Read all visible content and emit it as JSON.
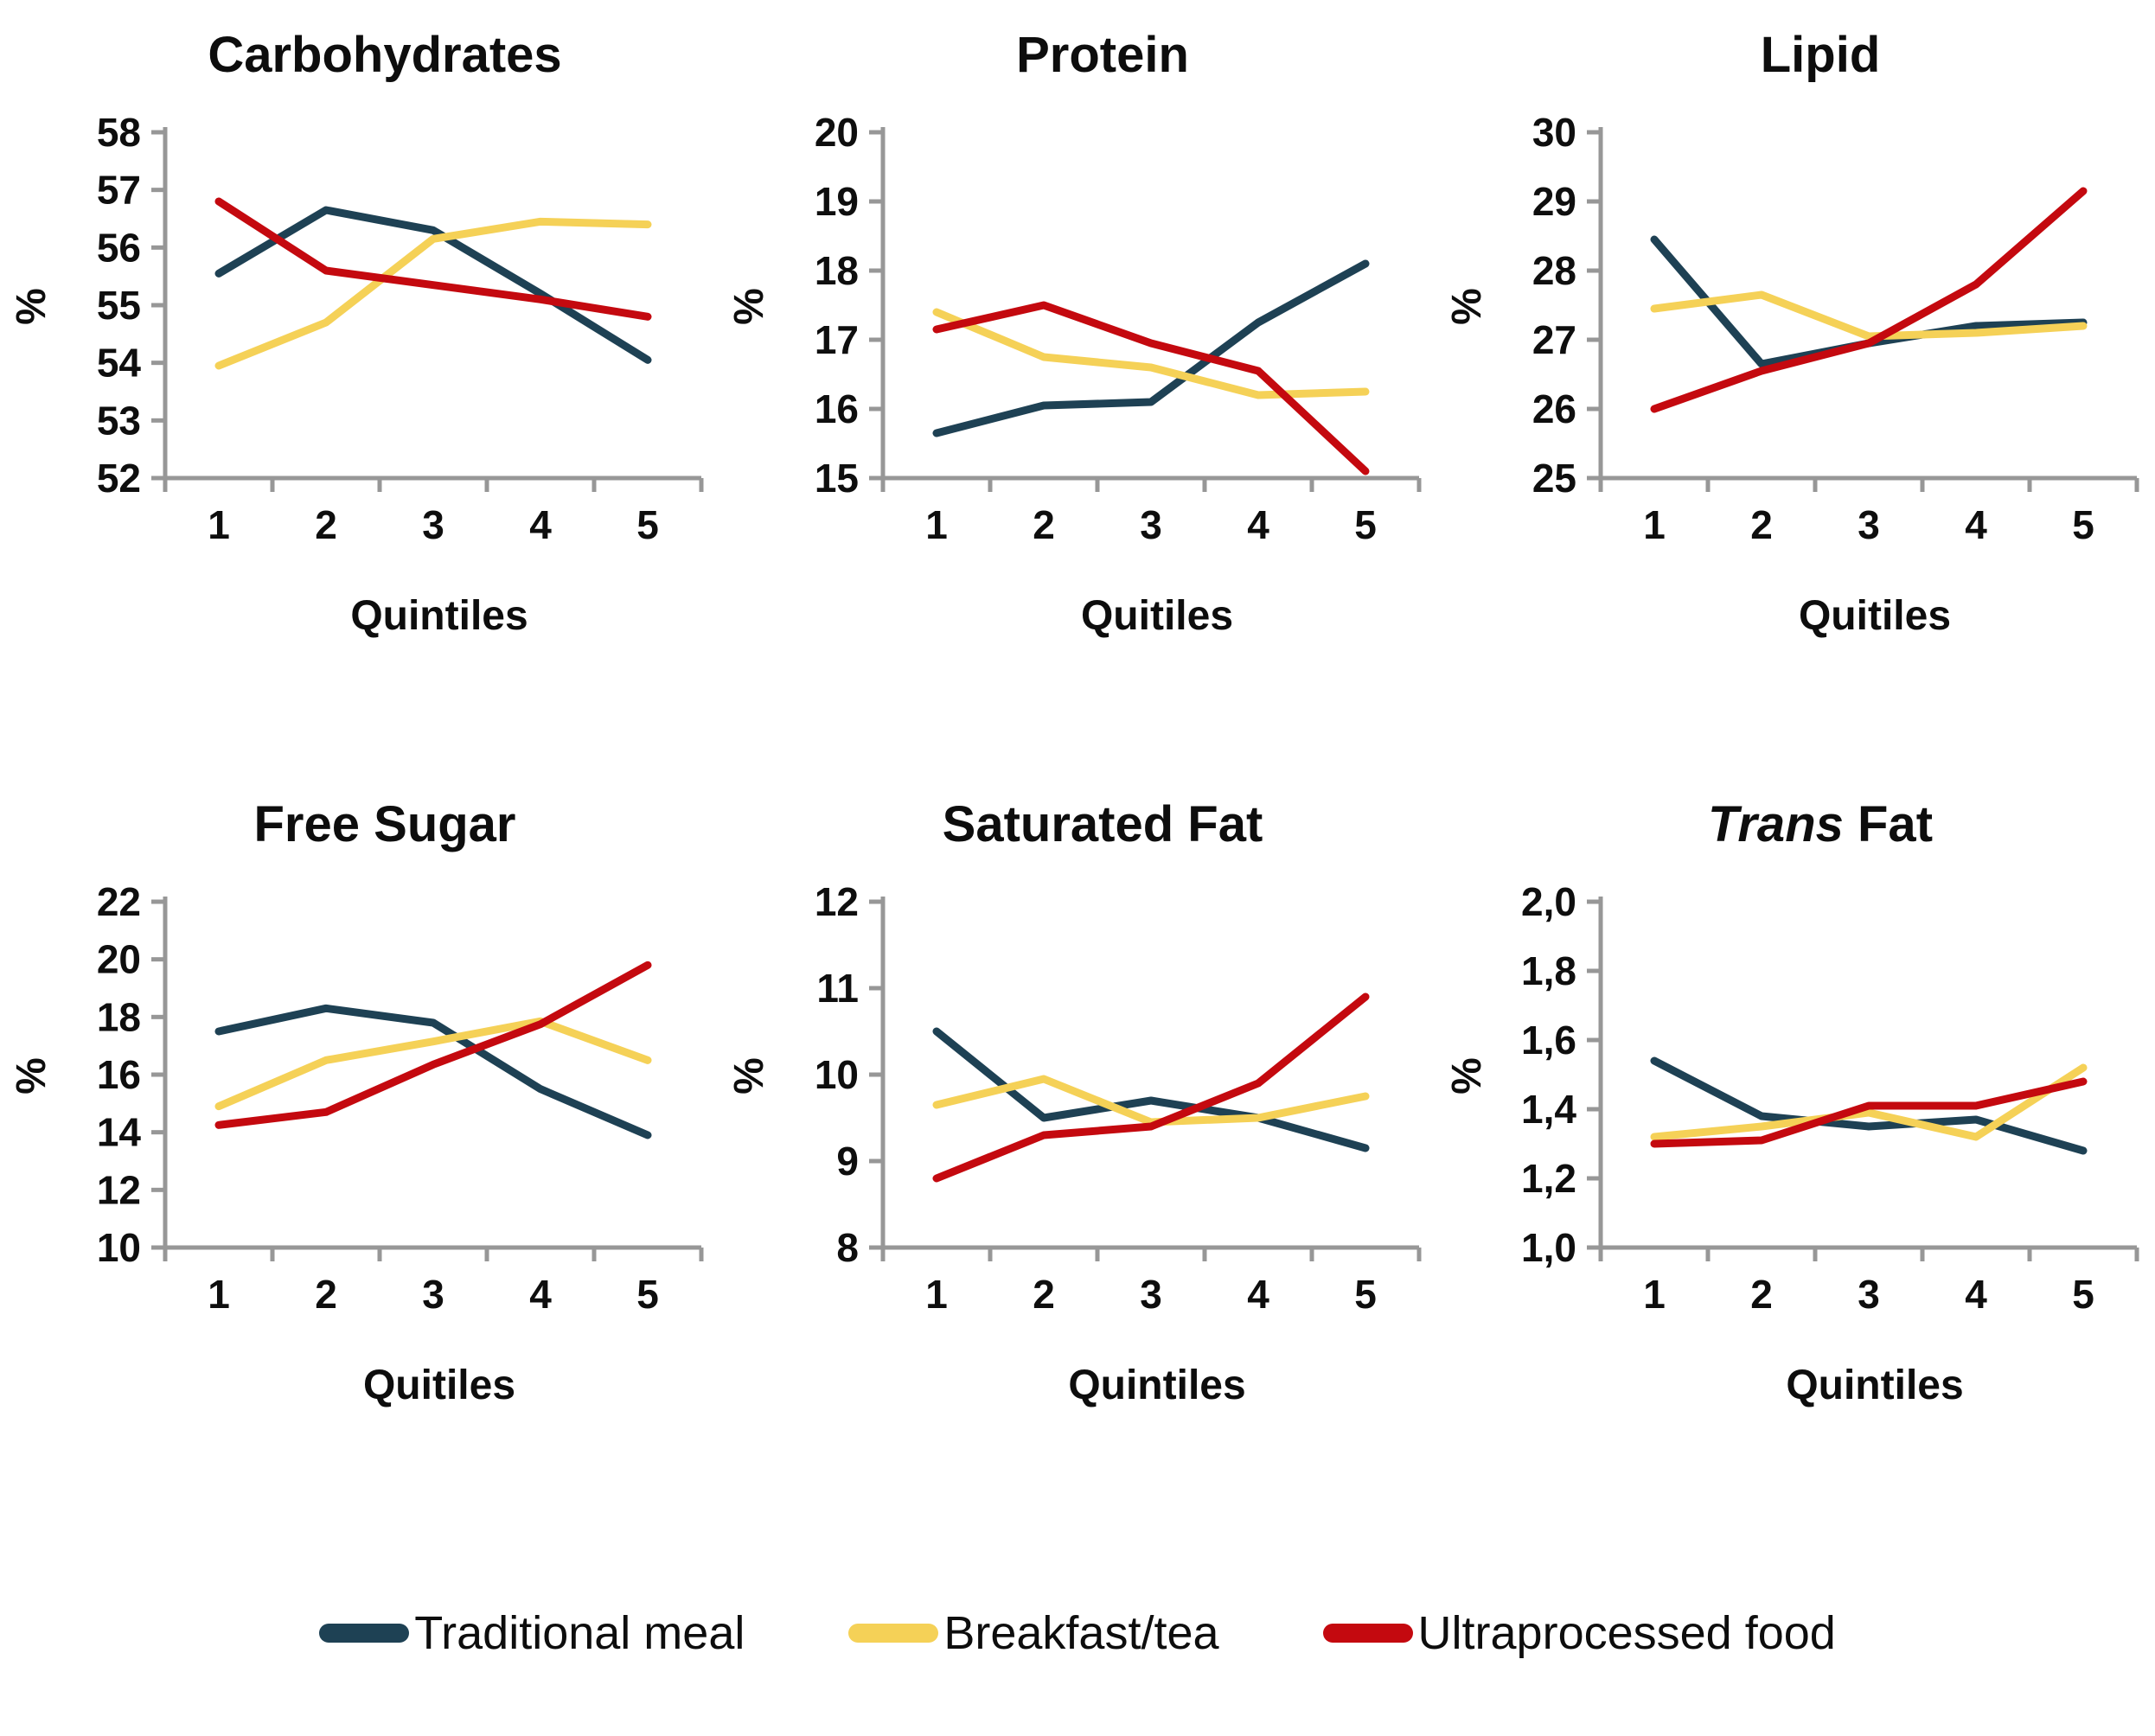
{
  "legend": {
    "items": [
      {
        "label": "Traditional meal",
        "color": "#1e4154"
      },
      {
        "label": "Breakfast/tea",
        "color": "#f5d157"
      },
      {
        "label": "Ultraprocessed food",
        "color": "#c4090f"
      }
    ]
  },
  "axis_style": {
    "axis_color": "#979797",
    "tick_label_color": "#0e0e0e"
  },
  "chart_data": [
    {
      "type": "line",
      "title_italic": "",
      "title_rest": "Carbohydrates",
      "xlabel": "Quintiles",
      "ylabel": "%",
      "categories": [
        1,
        2,
        3,
        4,
        5
      ],
      "xtick_labels": [
        "1",
        "2",
        "3",
        "4",
        "5"
      ],
      "ylim": [
        52,
        58
      ],
      "yticks": [
        52,
        53,
        54,
        55,
        56,
        57,
        58
      ],
      "ytick_labels": [
        "52",
        "53",
        "54",
        "55",
        "56",
        "57",
        "58"
      ],
      "grid": false,
      "series": [
        {
          "name": "Traditional meal",
          "color": "#1e4154",
          "values": [
            55.55,
            56.65,
            56.3,
            55.2,
            54.05
          ]
        },
        {
          "name": "Breakfast/tea",
          "color": "#f5d157",
          "values": [
            53.95,
            54.7,
            56.15,
            56.45,
            56.4
          ]
        },
        {
          "name": "Ultraprocessed food",
          "color": "#c4090f",
          "values": [
            56.8,
            55.6,
            55.35,
            55.1,
            54.8
          ]
        }
      ]
    },
    {
      "type": "line",
      "title_italic": "",
      "title_rest": "Protein",
      "xlabel": "Quitiles",
      "ylabel": "%",
      "categories": [
        1,
        2,
        3,
        4,
        5
      ],
      "xtick_labels": [
        "1",
        "2",
        "3",
        "4",
        "5"
      ],
      "ylim": [
        15,
        20
      ],
      "yticks": [
        15,
        16,
        17,
        18,
        19,
        20
      ],
      "ytick_labels": [
        "15",
        "16",
        "17",
        "18",
        "19",
        "20"
      ],
      "grid": false,
      "series": [
        {
          "name": "Traditional meal",
          "color": "#1e4154",
          "values": [
            15.65,
            16.05,
            16.1,
            17.25,
            18.1
          ]
        },
        {
          "name": "Breakfast/tea",
          "color": "#f5d157",
          "values": [
            17.4,
            16.75,
            16.6,
            16.2,
            16.25
          ]
        },
        {
          "name": "Ultraprocessed food",
          "color": "#c4090f",
          "values": [
            17.15,
            17.5,
            16.95,
            16.55,
            15.1
          ]
        }
      ]
    },
    {
      "type": "line",
      "title_italic": "",
      "title_rest": "Lipid",
      "xlabel": "Quitiles",
      "ylabel": "%",
      "categories": [
        1,
        2,
        3,
        4,
        5
      ],
      "xtick_labels": [
        "1",
        "2",
        "3",
        "4",
        "5"
      ],
      "ylim": [
        25,
        30
      ],
      "yticks": [
        25,
        26,
        27,
        28,
        29,
        30
      ],
      "ytick_labels": [
        "25",
        "26",
        "27",
        "28",
        "29",
        "30"
      ],
      "grid": false,
      "series": [
        {
          "name": "Traditional meal",
          "color": "#1e4154",
          "values": [
            28.45,
            26.65,
            26.95,
            27.2,
            27.25
          ]
        },
        {
          "name": "Breakfast/tea",
          "color": "#f5d157",
          "values": [
            27.45,
            27.65,
            27.05,
            27.1,
            27.2
          ]
        },
        {
          "name": "Ultraprocessed food",
          "color": "#c4090f",
          "values": [
            26.0,
            26.55,
            26.95,
            27.8,
            29.15
          ]
        }
      ]
    },
    {
      "type": "line",
      "title_italic": "",
      "title_rest": "Free Sugar",
      "xlabel": "Quitiles",
      "ylabel": "%",
      "categories": [
        1,
        2,
        3,
        4,
        5
      ],
      "xtick_labels": [
        "1",
        "2",
        "3",
        "4",
        "5"
      ],
      "ylim": [
        10,
        22
      ],
      "yticks": [
        10,
        12,
        14,
        16,
        18,
        20,
        22
      ],
      "ytick_labels": [
        "10",
        "12",
        "14",
        "16",
        "18",
        "20",
        "22"
      ],
      "grid": false,
      "series": [
        {
          "name": "Traditional meal",
          "color": "#1e4154",
          "values": [
            17.5,
            18.3,
            17.8,
            15.5,
            13.9
          ]
        },
        {
          "name": "Breakfast/tea",
          "color": "#f5d157",
          "values": [
            14.9,
            16.5,
            17.15,
            17.85,
            16.5
          ]
        },
        {
          "name": "Ultraprocessed food",
          "color": "#c4090f",
          "values": [
            14.25,
            14.7,
            16.35,
            17.75,
            19.8
          ]
        }
      ]
    },
    {
      "type": "line",
      "title_italic": "",
      "title_rest": "Saturated Fat",
      "xlabel": "Quintiles",
      "ylabel": "%",
      "categories": [
        1,
        2,
        3,
        4,
        5
      ],
      "xtick_labels": [
        "1",
        "2",
        "3",
        "4",
        "5"
      ],
      "ylim": [
        8,
        12
      ],
      "yticks": [
        8,
        9,
        10,
        11,
        12
      ],
      "ytick_labels": [
        "8",
        "9",
        "10",
        "11",
        "12"
      ],
      "grid": false,
      "series": [
        {
          "name": "Traditional meal",
          "color": "#1e4154",
          "values": [
            10.5,
            9.5,
            9.7,
            9.5,
            9.15
          ]
        },
        {
          "name": "Breakfast/tea",
          "color": "#f5d157",
          "values": [
            9.65,
            9.95,
            9.45,
            9.5,
            9.75
          ]
        },
        {
          "name": "Ultraprocessed food",
          "color": "#c4090f",
          "values": [
            8.8,
            9.3,
            9.4,
            9.9,
            10.9
          ]
        }
      ]
    },
    {
      "type": "line",
      "title_italic": "Trans",
      "title_rest": " Fat",
      "xlabel": "Quintiles",
      "ylabel": "%",
      "categories": [
        1,
        2,
        3,
        4,
        5
      ],
      "xtick_labels": [
        "1",
        "2",
        "3",
        "4",
        "5"
      ],
      "ylim": [
        1.0,
        2.0
      ],
      "yticks": [
        1.0,
        1.2,
        1.4,
        1.6,
        1.8,
        2.0
      ],
      "ytick_labels": [
        "1,0",
        "1,2",
        "1,4",
        "1,6",
        "1,8",
        "2,0"
      ],
      "grid": false,
      "series": [
        {
          "name": "Traditional meal",
          "color": "#1e4154",
          "values": [
            1.54,
            1.38,
            1.35,
            1.37,
            1.28
          ]
        },
        {
          "name": "Breakfast/tea",
          "color": "#f5d157",
          "values": [
            1.32,
            1.35,
            1.39,
            1.32,
            1.52
          ]
        },
        {
          "name": "Ultraprocessed food",
          "color": "#c4090f",
          "values": [
            1.3,
            1.31,
            1.41,
            1.41,
            1.48
          ]
        }
      ]
    }
  ]
}
